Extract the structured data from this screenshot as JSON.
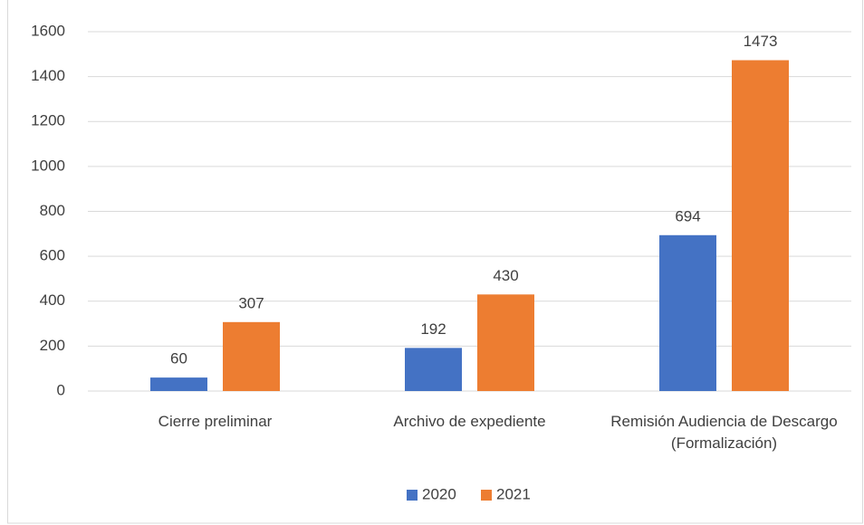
{
  "chart_data": {
    "type": "bar",
    "categories": [
      "Cierre preliminar",
      "Archivo de expediente",
      "Remisión Audiencia de Descargo (Formalización)"
    ],
    "series": [
      {
        "name": "2020",
        "color": "#4472c4",
        "values": [
          60,
          192,
          694
        ]
      },
      {
        "name": "2021",
        "color": "#ed7d31",
        "values": [
          307,
          430,
          1473
        ]
      }
    ],
    "ylim": [
      0,
      1600
    ],
    "yticks": [
      0,
      200,
      400,
      600,
      800,
      1000,
      1200,
      1400,
      1600
    ],
    "grid": true,
    "legend": "bottom",
    "data_labels": true
  }
}
